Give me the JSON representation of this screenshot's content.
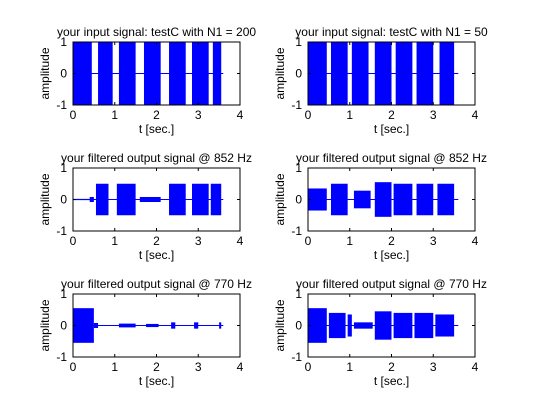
{
  "figure": {
    "background": "#ffffff",
    "signal_color": "#0000ff",
    "axes_color": "#000000"
  },
  "chart_data": [
    {
      "type": "line",
      "title": "your input signal: testC with N1 = 200",
      "xlabel": "t [sec.]",
      "ylabel": "amplitude",
      "xlim": [
        0,
        4
      ],
      "ylim": [
        -1,
        1
      ],
      "xticks": [
        0,
        1,
        2,
        3,
        4
      ],
      "yticks": [
        -1,
        0,
        1
      ],
      "grid": false,
      "segments": [
        {
          "t_start": 0.0,
          "t_end": 0.45,
          "amplitude": 1.0
        },
        {
          "t_start": 0.6,
          "t_end": 0.95,
          "amplitude": 1.0
        },
        {
          "t_start": 1.1,
          "t_end": 1.5,
          "amplitude": 1.0
        },
        {
          "t_start": 1.7,
          "t_end": 2.1,
          "amplitude": 1.0
        },
        {
          "t_start": 2.3,
          "t_end": 2.7,
          "amplitude": 1.0
        },
        {
          "t_start": 2.85,
          "t_end": 3.25,
          "amplitude": 1.0
        },
        {
          "t_start": 3.35,
          "t_end": 3.55,
          "amplitude": 1.0
        }
      ],
      "baseline": {
        "t_start": 0.0,
        "t_end": 3.6
      }
    },
    {
      "type": "line",
      "title": "your input signal: testC with N1 = 50",
      "xlabel": "t [sec.]",
      "ylabel": "amplitude",
      "xlim": [
        0,
        4
      ],
      "ylim": [
        -1,
        1
      ],
      "xticks": [
        0,
        1,
        2,
        3,
        4
      ],
      "yticks": [
        -1,
        0,
        1
      ],
      "grid": false,
      "segments": [
        {
          "t_start": 0.0,
          "t_end": 0.45,
          "amplitude": 1.0
        },
        {
          "t_start": 0.55,
          "t_end": 0.95,
          "amplitude": 1.0
        },
        {
          "t_start": 1.05,
          "t_end": 1.45,
          "amplitude": 1.0
        },
        {
          "t_start": 1.6,
          "t_end": 2.0,
          "amplitude": 1.0
        },
        {
          "t_start": 2.1,
          "t_end": 2.5,
          "amplitude": 1.0
        },
        {
          "t_start": 2.6,
          "t_end": 3.0,
          "amplitude": 1.0
        },
        {
          "t_start": 3.15,
          "t_end": 3.5,
          "amplitude": 1.0
        }
      ],
      "baseline": {
        "t_start": 0.0,
        "t_end": 3.6
      }
    },
    {
      "type": "line",
      "title": "your filtered output signal @ 852 Hz",
      "xlabel": "t [sec.]",
      "ylabel": "amplitude",
      "xlim": [
        0,
        4
      ],
      "ylim": [
        -1,
        1
      ],
      "xticks": [
        0,
        1,
        2,
        3,
        4
      ],
      "yticks": [
        -1,
        0,
        1
      ],
      "grid": false,
      "segments": [
        {
          "t_start": 0.0,
          "t_end": 0.4,
          "amplitude": 0.02
        },
        {
          "t_start": 0.4,
          "t_end": 0.5,
          "amplitude": 0.08
        },
        {
          "t_start": 0.55,
          "t_end": 0.85,
          "amplitude": 0.5
        },
        {
          "t_start": 1.05,
          "t_end": 1.5,
          "amplitude": 0.5
        },
        {
          "t_start": 1.6,
          "t_end": 2.1,
          "amplitude": 0.08
        },
        {
          "t_start": 2.3,
          "t_end": 2.7,
          "amplitude": 0.5
        },
        {
          "t_start": 2.85,
          "t_end": 3.25,
          "amplitude": 0.5
        },
        {
          "t_start": 3.3,
          "t_end": 3.55,
          "amplitude": 0.5
        }
      ],
      "baseline": {
        "t_start": 0.0,
        "t_end": 3.6
      }
    },
    {
      "type": "line",
      "title": "your filtered output signal @ 852 Hz",
      "xlabel": "t [sec.]",
      "ylabel": "amplitude",
      "xlim": [
        0,
        4
      ],
      "ylim": [
        -1,
        1
      ],
      "xticks": [
        0,
        1,
        2,
        3,
        4
      ],
      "yticks": [
        -1,
        0,
        1
      ],
      "grid": false,
      "segments": [
        {
          "t_start": 0.0,
          "t_end": 0.45,
          "amplitude": 0.35
        },
        {
          "t_start": 0.55,
          "t_end": 0.95,
          "amplitude": 0.5
        },
        {
          "t_start": 1.1,
          "t_end": 1.5,
          "amplitude": 0.28
        },
        {
          "t_start": 1.6,
          "t_end": 2.0,
          "amplitude": 0.55
        },
        {
          "t_start": 2.05,
          "t_end": 2.5,
          "amplitude": 0.5
        },
        {
          "t_start": 2.6,
          "t_end": 3.0,
          "amplitude": 0.5
        },
        {
          "t_start": 3.1,
          "t_end": 3.5,
          "amplitude": 0.5
        }
      ],
      "baseline": {
        "t_start": 0.0,
        "t_end": 3.6
      }
    },
    {
      "type": "line",
      "title": "your filtered output signal @ 770 Hz",
      "xlabel": "t [sec.]",
      "ylabel": "amplitude",
      "xlim": [
        0,
        4
      ],
      "ylim": [
        -1,
        1
      ],
      "xticks": [
        0,
        1,
        2,
        3,
        4
      ],
      "yticks": [
        -1,
        0,
        1
      ],
      "grid": false,
      "segments": [
        {
          "t_start": 0.0,
          "t_end": 0.5,
          "amplitude": 0.55
        },
        {
          "t_start": 0.5,
          "t_end": 0.6,
          "amplitude": 0.08
        },
        {
          "t_start": 1.1,
          "t_end": 1.5,
          "amplitude": 0.06
        },
        {
          "t_start": 1.75,
          "t_end": 2.05,
          "amplitude": 0.05
        },
        {
          "t_start": 2.35,
          "t_end": 2.45,
          "amplitude": 0.1
        },
        {
          "t_start": 2.9,
          "t_end": 3.0,
          "amplitude": 0.1
        },
        {
          "t_start": 3.5,
          "t_end": 3.55,
          "amplitude": 0.1
        }
      ],
      "baseline": {
        "t_start": 0.0,
        "t_end": 3.6
      }
    },
    {
      "type": "line",
      "title": "your filtered output signal @ 770 Hz",
      "xlabel": "t [sec.]",
      "ylabel": "amplitude",
      "xlim": [
        0,
        4
      ],
      "ylim": [
        -1,
        1
      ],
      "xticks": [
        0,
        1,
        2,
        3,
        4
      ],
      "yticks": [
        -1,
        0,
        1
      ],
      "grid": false,
      "segments": [
        {
          "t_start": 0.0,
          "t_end": 0.45,
          "amplitude": 0.55
        },
        {
          "t_start": 0.5,
          "t_end": 0.9,
          "amplitude": 0.4
        },
        {
          "t_start": 0.95,
          "t_end": 1.05,
          "amplitude": 0.35
        },
        {
          "t_start": 1.1,
          "t_end": 1.55,
          "amplitude": 0.1
        },
        {
          "t_start": 1.6,
          "t_end": 2.0,
          "amplitude": 0.45
        },
        {
          "t_start": 2.05,
          "t_end": 2.5,
          "amplitude": 0.4
        },
        {
          "t_start": 2.55,
          "t_end": 3.0,
          "amplitude": 0.4
        },
        {
          "t_start": 3.05,
          "t_end": 3.5,
          "amplitude": 0.35
        }
      ],
      "baseline": {
        "t_start": 0.0,
        "t_end": 3.6
      }
    }
  ]
}
